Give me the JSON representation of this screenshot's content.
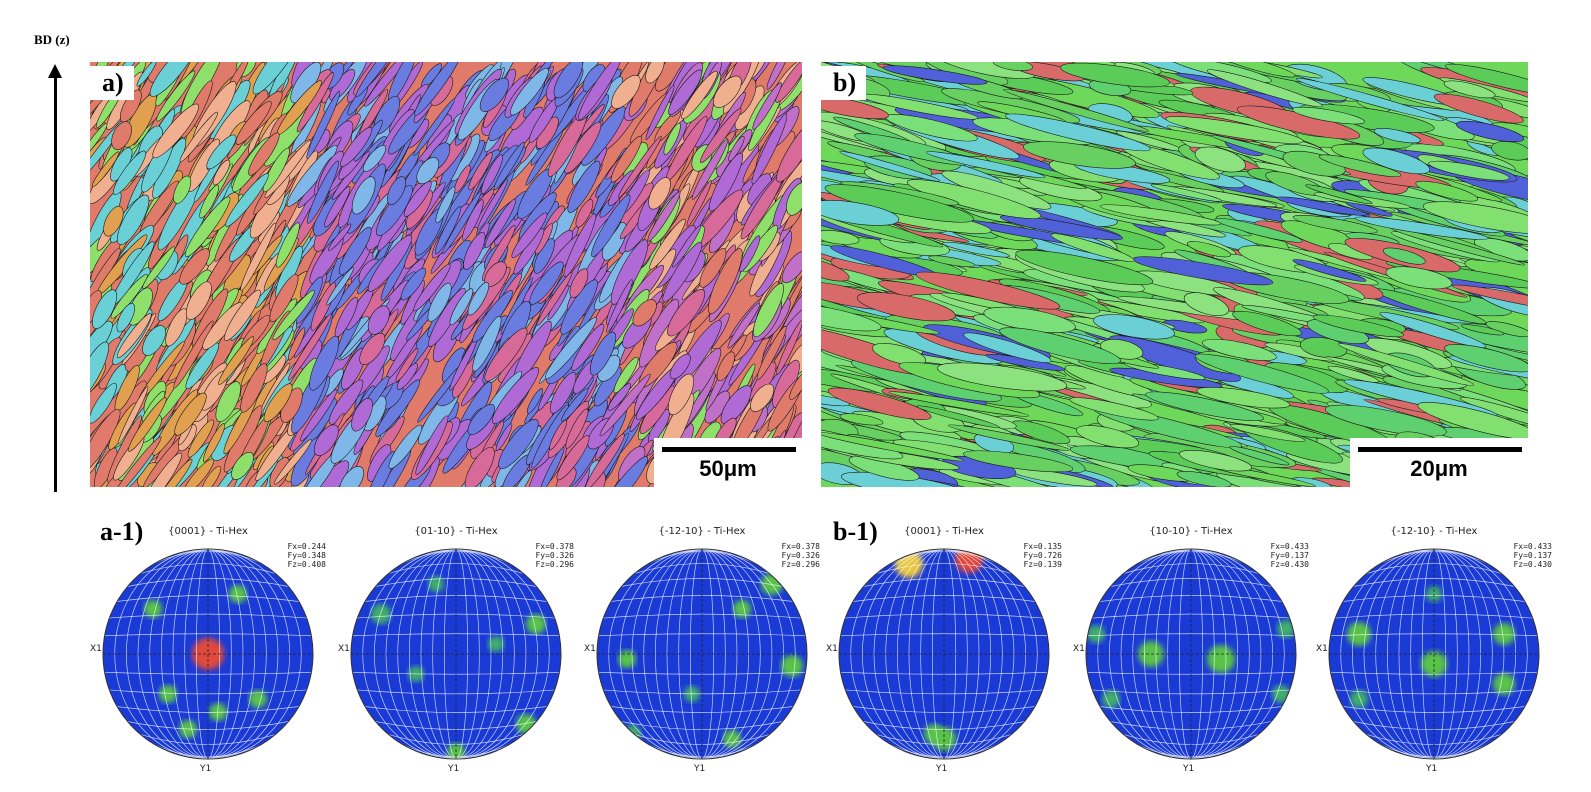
{
  "figure": {
    "axis_label": "BD (z)",
    "panels": [
      {
        "id": "a",
        "label": "a)",
        "scale_label": "50μm",
        "palette": [
          "#e07a6a",
          "#6a7ce0",
          "#b06ad6",
          "#8ee06a",
          "#e0a050",
          "#6ad0d6",
          "#c070c8",
          "#f0b090",
          "#7fb8e8",
          "#d86a9a"
        ]
      },
      {
        "id": "b",
        "label": "b)",
        "scale_label": "20μm",
        "palette": [
          "#6ed85a",
          "#7be07a",
          "#5ccc58",
          "#82e070",
          "#6ad0d6",
          "#5060d8",
          "#d86a6a",
          "#68d060",
          "#8ce27e",
          "#5fd070"
        ]
      }
    ],
    "pole_figure_groups": [
      {
        "label": "a-1)",
        "plots": [
          {
            "title": "{0001} - Ti-Hex",
            "fx": "Fx=0.244",
            "fy": "Fy=0.348",
            "fz": "Fz=0.408",
            "x_label": "X1",
            "y_label": "Y1"
          },
          {
            "title": "{01-10} - Ti-Hex",
            "fx": "Fx=0.378",
            "fy": "Fy=0.326",
            "fz": "Fz=0.296",
            "x_label": "X1",
            "y_label": "Y1"
          },
          {
            "title": "{-12-10} - Ti-Hex",
            "fx": "Fx=0.378",
            "fy": "Fy=0.326",
            "fz": "Fz=0.296",
            "x_label": "X1",
            "y_label": "Y1"
          }
        ]
      },
      {
        "label": "b-1)",
        "plots": [
          {
            "title": "{0001} - Ti-Hex",
            "fx": "Fx=0.135",
            "fy": "Fy=0.726",
            "fz": "Fz=0.139",
            "x_label": "X1",
            "y_label": "Y1"
          },
          {
            "title": "{10-10} - Ti-Hex",
            "fx": "Fx=0.433",
            "fy": "Fy=0.137",
            "fz": "Fz=0.430",
            "x_label": "X1",
            "y_label": "Y1"
          },
          {
            "title": "{-12-10} - Ti-Hex",
            "fx": "Fx=0.433",
            "fy": "Fy=0.137",
            "fz": "Fz=0.430",
            "x_label": "X1",
            "y_label": "Y1"
          }
        ]
      }
    ]
  }
}
